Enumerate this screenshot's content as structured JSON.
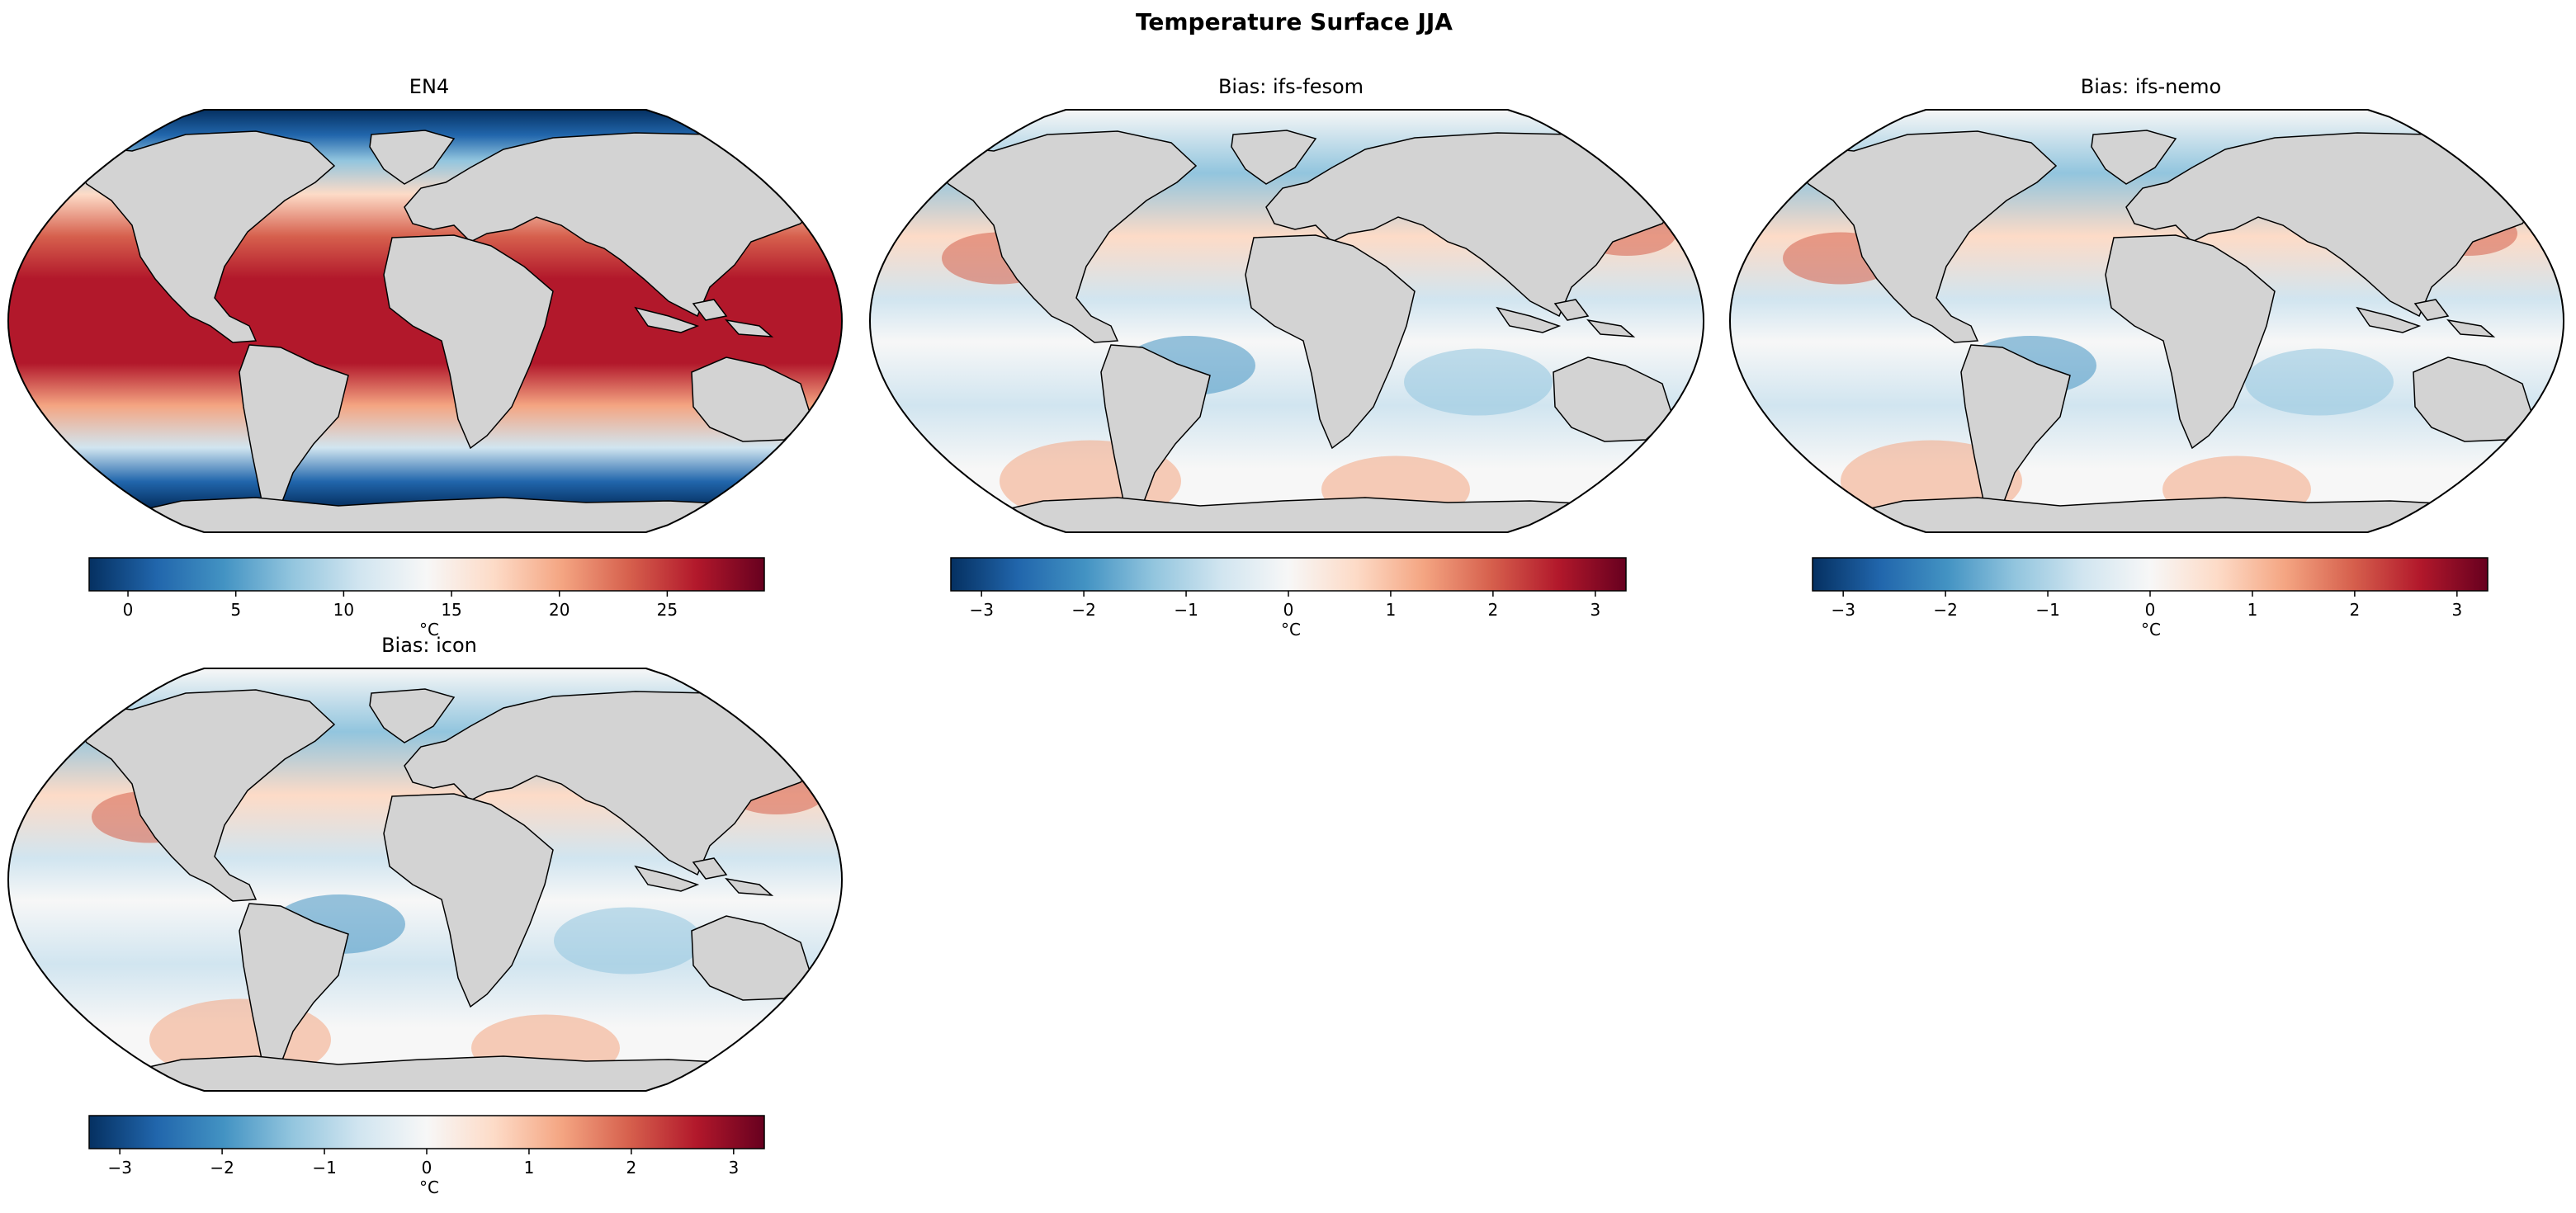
{
  "figure": {
    "title": "Temperature Surface JJA"
  },
  "panels": [
    {
      "title": "EN4",
      "field": "absolute",
      "colorbar": {
        "label": "°C",
        "vmin": -1.8,
        "vmax": 29.5,
        "ticks": [
          "0",
          "5",
          "10",
          "15",
          "20",
          "25"
        ],
        "tick_values": [
          0,
          5,
          10,
          15,
          20,
          25
        ]
      }
    },
    {
      "title": "Bias: ifs-fesom",
      "field": "bias",
      "colorbar": {
        "label": "°C",
        "vmin": -3.3,
        "vmax": 3.3,
        "ticks": [
          "−3",
          "−2",
          "−1",
          "0",
          "1",
          "2",
          "3"
        ],
        "tick_values": [
          -3,
          -2,
          -1,
          0,
          1,
          2,
          3
        ]
      }
    },
    {
      "title": "Bias: ifs-nemo",
      "field": "bias",
      "colorbar": {
        "label": "°C",
        "vmin": -3.3,
        "vmax": 3.3,
        "ticks": [
          "−3",
          "−2",
          "−1",
          "0",
          "1",
          "2",
          "3"
        ],
        "tick_values": [
          -3,
          -2,
          -1,
          0,
          1,
          2,
          3
        ]
      }
    },
    {
      "title": "Bias: icon",
      "field": "bias",
      "colorbar": {
        "label": "°C",
        "vmin": -3.3,
        "vmax": 3.3,
        "ticks": [
          "−3",
          "−2",
          "−1",
          "0",
          "1",
          "2",
          "3"
        ],
        "tick_values": [
          -3,
          -2,
          -1,
          0,
          1,
          2,
          3
        ]
      }
    }
  ],
  "colors": {
    "colormap": [
      "#053061",
      "#2166ac",
      "#4393c3",
      "#92c5de",
      "#d1e5f0",
      "#f7f7f7",
      "#fddbc7",
      "#f4a582",
      "#d6604d",
      "#b2182b",
      "#67001f"
    ],
    "land": "#d3d3d3",
    "coast": "#000000"
  }
}
